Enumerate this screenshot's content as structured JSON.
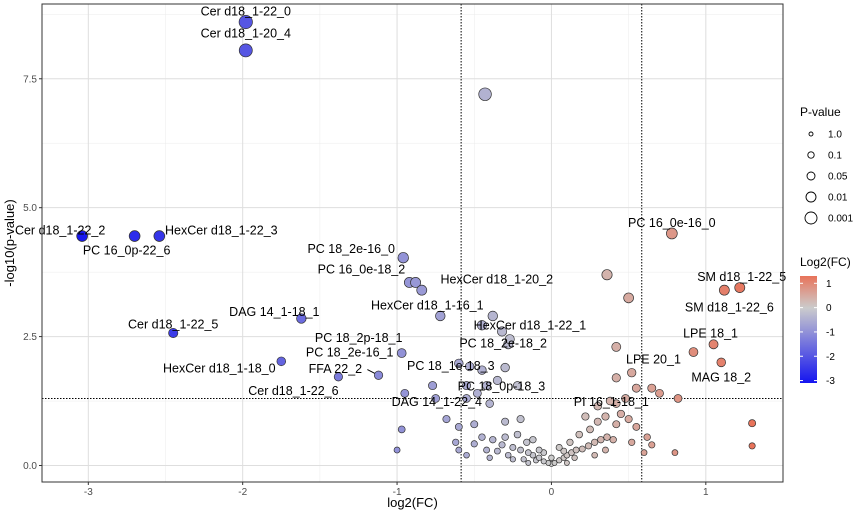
{
  "chart_data": {
    "type": "scatter",
    "title": "",
    "xlabel": "log2(FC)",
    "ylabel": "-log10(p-value)",
    "xlim": [
      -3.3,
      1.5
    ],
    "ylim": [
      -0.32,
      8.95
    ],
    "x_ticks": [
      -3,
      -2,
      -1,
      0,
      1
    ],
    "x_tick_labels": [
      "-3",
      "-2",
      "-1",
      "0",
      "1"
    ],
    "y_ticks": [
      0,
      2.5,
      5,
      7.5
    ],
    "y_tick_labels": [
      "0.0",
      "2.5",
      "5.0",
      "7.5"
    ],
    "grid": true,
    "threshold_lines": {
      "vertical": [
        -0.585,
        0.585
      ],
      "horizontal": [
        1.3
      ]
    },
    "size_legend": {
      "title": "P-value",
      "entries": [
        {
          "label": "1.0",
          "p": 1.0
        },
        {
          "label": "0.1",
          "p": 0.1
        },
        {
          "label": "0.05",
          "p": 0.05
        },
        {
          "label": "0.01",
          "p": 0.01
        },
        {
          "label": "0.001",
          "p": 0.001
        }
      ]
    },
    "color_legend": {
      "title": "Log2(FC)",
      "ticks": [
        1,
        0,
        -1,
        -2,
        -3
      ],
      "tick_labels": [
        "1",
        "0",
        "-1",
        "-2",
        "-3"
      ],
      "range": [
        -3.1,
        1.3
      ],
      "colors": {
        "low": "#1414f0",
        "mid": "#cccccc",
        "high": "#e8735a"
      }
    },
    "labeled_points": [
      {
        "label": "Cer d18_1-22_0",
        "x": -1.98,
        "y": 8.6
      },
      {
        "label": "Cer d18_1-20_4",
        "x": -1.98,
        "y": 8.05
      },
      {
        "label": "Cer d18_1-22_2",
        "x": -3.04,
        "y": 4.45
      },
      {
        "label": "HexCer d18_1-22_3",
        "x": -2.54,
        "y": 4.45
      },
      {
        "label": "PC 16_0p-22_6",
        "x": -2.7,
        "y": 4.45
      },
      {
        "label": "Cer d18_1-22_5",
        "x": -2.45,
        "y": 2.57
      },
      {
        "label": "PC 18_2e-16_0",
        "x": -0.96,
        "y": 4.03
      },
      {
        "label": "PC 16_0e-18_2",
        "x": -0.92,
        "y": 3.55
      },
      {
        "label": "HexCer d18_1-20_2",
        "x": -0.84,
        "y": 3.4
      },
      {
        "label": "HexCer d18_1-16_1",
        "x": -0.72,
        "y": 2.9
      },
      {
        "label": "DAG 14_1-18_1",
        "x": -1.62,
        "y": 2.85
      },
      {
        "label": "PC 18_2p-18_1",
        "x": -0.75,
        "y": 2.65
      },
      {
        "label": "HexCer d18_1-22_1",
        "x": -0.45,
        "y": 2.7
      },
      {
        "label": "PC 18_2e-16_1",
        "x": -0.97,
        "y": 2.18
      },
      {
        "label": "PC 18_2e-18_2",
        "x": -0.3,
        "y": 2.35
      },
      {
        "label": "HexCer d18_1-18_0",
        "x": -1.75,
        "y": 2.02
      },
      {
        "label": "FFA 22_2",
        "x": -1.27,
        "y": 1.9
      },
      {
        "label": "PC 18_1e-18_3",
        "x": -0.6,
        "y": 1.95
      },
      {
        "label": "Cer d18_1-22_6",
        "x": -1.38,
        "y": 1.72
      },
      {
        "label": "PC 18_0p-18_3",
        "x": -0.35,
        "y": 1.6
      },
      {
        "label": "DAG 14_1-22_4",
        "x": -0.6,
        "y": 1.2
      },
      {
        "label": "PI 16_1-18_1",
        "x": 0.42,
        "y": 1.2
      },
      {
        "label": "PC 16_0e-16_0",
        "x": 0.78,
        "y": 4.5
      },
      {
        "label": "SM d18_1-22_5",
        "x": 1.2,
        "y": 3.45
      },
      {
        "label": "SM d18_1-22_6",
        "x": 1.12,
        "y": 3.4
      },
      {
        "label": "LPE 18_1",
        "x": 1.05,
        "y": 2.35
      },
      {
        "label": "LPE 20_1",
        "x": 0.92,
        "y": 2.2
      },
      {
        "label": "MAG 18_2",
        "x": 1.1,
        "y": 2.0
      }
    ],
    "points": [
      [
        -1.98,
        8.6
      ],
      [
        -1.98,
        8.05
      ],
      [
        -0.43,
        7.2
      ],
      [
        -3.04,
        4.45
      ],
      [
        -2.7,
        4.45
      ],
      [
        -2.54,
        4.45
      ],
      [
        -2.45,
        2.57
      ],
      [
        -0.96,
        4.03
      ],
      [
        -0.92,
        3.55
      ],
      [
        -0.84,
        3.4
      ],
      [
        -0.88,
        3.55
      ],
      [
        -0.72,
        2.9
      ],
      [
        -1.62,
        2.85
      ],
      [
        -0.45,
        2.72
      ],
      [
        -0.38,
        2.9
      ],
      [
        -0.32,
        2.6
      ],
      [
        -0.27,
        2.45
      ],
      [
        -0.28,
        2.35
      ],
      [
        -0.97,
        2.18
      ],
      [
        -1.75,
        2.02
      ],
      [
        -1.38,
        1.72
      ],
      [
        -1.12,
        1.75
      ],
      [
        -0.6,
        1.98
      ],
      [
        -0.53,
        1.92
      ],
      [
        -0.45,
        1.85
      ],
      [
        -0.35,
        1.65
      ],
      [
        -0.3,
        1.9
      ],
      [
        -0.22,
        1.55
      ],
      [
        -0.55,
        1.55
      ],
      [
        -0.42,
        1.55
      ],
      [
        -0.77,
        1.55
      ],
      [
        -0.95,
        1.4
      ],
      [
        -0.75,
        1.3
      ],
      [
        -0.55,
        1.3
      ],
      [
        -0.48,
        1.4
      ],
      [
        -0.4,
        1.2
      ],
      [
        -0.68,
        0.9
      ],
      [
        -0.6,
        0.75
      ],
      [
        -0.5,
        0.8
      ],
      [
        -0.3,
        0.85
      ],
      [
        -0.2,
        0.9
      ],
      [
        -1.0,
        0.3
      ],
      [
        -0.97,
        0.7
      ],
      [
        -0.62,
        0.45
      ],
      [
        -0.5,
        0.42
      ],
      [
        -0.45,
        0.55
      ],
      [
        -0.38,
        0.5
      ],
      [
        -0.32,
        0.4
      ],
      [
        -0.25,
        0.35
      ],
      [
        -0.2,
        0.3
      ],
      [
        -0.15,
        0.25
      ],
      [
        -0.12,
        0.2
      ],
      [
        -0.08,
        0.15
      ],
      [
        -0.05,
        0.08
      ],
      [
        -0.02,
        0.05
      ],
      [
        0.0,
        0.03
      ],
      [
        0.02,
        0.05
      ],
      [
        0.05,
        0.1
      ],
      [
        0.08,
        0.15
      ],
      [
        0.1,
        0.2
      ],
      [
        0.13,
        0.25
      ],
      [
        0.16,
        0.3
      ],
      [
        0.2,
        0.32
      ],
      [
        0.24,
        0.38
      ],
      [
        0.28,
        0.45
      ],
      [
        0.32,
        0.5
      ],
      [
        0.36,
        0.55
      ],
      [
        0.4,
        0.5
      ],
      [
        -0.28,
        0.2
      ],
      [
        -0.18,
        0.12
      ],
      [
        -0.1,
        0.1
      ],
      [
        -0.35,
        0.28
      ],
      [
        -0.42,
        0.3
      ],
      [
        -0.3,
        0.55
      ],
      [
        -0.22,
        0.6
      ],
      [
        -0.16,
        0.45
      ],
      [
        -0.08,
        0.3
      ],
      [
        0.05,
        0.35
      ],
      [
        0.12,
        0.45
      ],
      [
        0.18,
        0.6
      ],
      [
        0.25,
        0.7
      ],
      [
        0.3,
        0.85
      ],
      [
        0.22,
        0.95
      ],
      [
        0.35,
        0.95
      ],
      [
        0.42,
        0.8
      ],
      [
        0.45,
        1.0
      ],
      [
        0.5,
        0.9
      ],
      [
        0.3,
        1.15
      ],
      [
        0.38,
        1.25
      ],
      [
        0.42,
        1.2
      ],
      [
        0.48,
        1.3
      ],
      [
        0.55,
        0.75
      ],
      [
        0.62,
        0.55
      ],
      [
        0.6,
        0.25
      ],
      [
        0.52,
        0.45
      ],
      [
        0.8,
        0.25
      ],
      [
        0.65,
        0.4
      ],
      [
        0.82,
        1.3
      ],
      [
        0.7,
        1.4
      ],
      [
        0.65,
        1.5
      ],
      [
        0.55,
        1.5
      ],
      [
        0.42,
        1.7
      ],
      [
        0.52,
        1.8
      ],
      [
        0.42,
        2.3
      ],
      [
        0.36,
        3.7
      ],
      [
        0.5,
        3.25
      ],
      [
        0.78,
        4.5
      ],
      [
        1.12,
        3.4
      ],
      [
        1.22,
        3.45
      ],
      [
        1.05,
        2.35
      ],
      [
        0.92,
        2.2
      ],
      [
        1.1,
        2.0
      ],
      [
        1.3,
        0.82
      ],
      [
        1.3,
        0.38
      ],
      [
        -0.55,
        0.2
      ],
      [
        -0.6,
        0.3
      ],
      [
        -0.12,
        0.5
      ],
      [
        0.15,
        0.15
      ],
      [
        0.0,
        0.15
      ],
      [
        -0.05,
        0.25
      ],
      [
        0.08,
        0.28
      ],
      [
        -0.25,
        0.12
      ],
      [
        0.28,
        0.2
      ],
      [
        0.35,
        0.3
      ],
      [
        -0.4,
        0.15
      ],
      [
        -0.15,
        0.05
      ],
      [
        0.1,
        0.05
      ]
    ]
  }
}
